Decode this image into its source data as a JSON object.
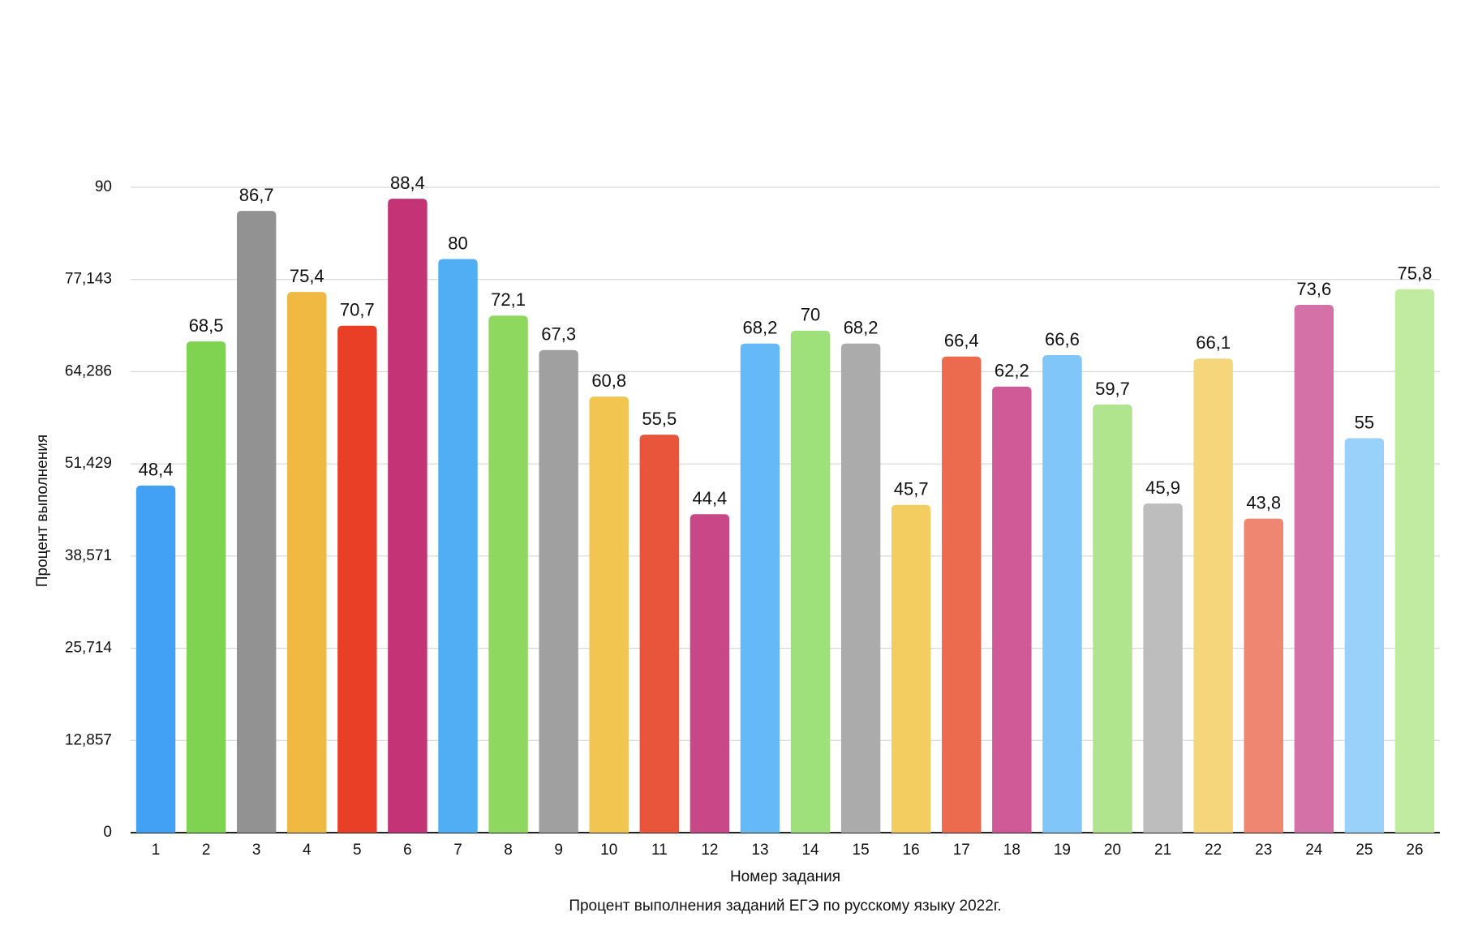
{
  "chart_data": {
    "type": "bar",
    "title": "Процент выполнения заданий ЕГЭ по русскому языку 2022г.",
    "x_label": "Номер задания",
    "y_label": "Процент выполнения",
    "categories": [
      "1",
      "2",
      "3",
      "4",
      "5",
      "6",
      "7",
      "8",
      "9",
      "10",
      "11",
      "12",
      "13",
      "14",
      "15",
      "16",
      "17",
      "18",
      "19",
      "20",
      "21",
      "22",
      "23",
      "24",
      "25",
      "26"
    ],
    "values": [
      48.4,
      68.5,
      86.7,
      75.4,
      70.7,
      88.4,
      80,
      72.1,
      67.3,
      60.8,
      55.5,
      44.4,
      68.2,
      70,
      68.2,
      45.7,
      66.4,
      62.2,
      66.6,
      59.7,
      45.9,
      66.1,
      43.8,
      73.6,
      55,
      75.8
    ],
    "value_labels": [
      "48,4",
      "68,5",
      "86,7",
      "75,4",
      "70,7",
      "88,4",
      "80",
      "72,1",
      "67,3",
      "60,8",
      "55,5",
      "44,4",
      "68,2",
      "70",
      "68,2",
      "45,7",
      "66,4",
      "62,2",
      "66,6",
      "59,7",
      "45,9",
      "66,1",
      "43,8",
      "73,6",
      "55",
      "75,8"
    ],
    "colors": [
      "#42a0f5",
      "#7ed350",
      "#929292",
      "#f0b941",
      "#e93f26",
      "#c33376",
      "#50aef5",
      "#8fd860",
      "#a0a0a0",
      "#f2c450",
      "#e8553a",
      "#c84887",
      "#66b9f7",
      "#9ee07a",
      "#ababab",
      "#f3cd60",
      "#ec6a4e",
      "#d05a97",
      "#80c6f8",
      "#b0e58e",
      "#bdbdbd",
      "#f5d67a",
      "#ef8672",
      "#d472a8",
      "#98d2fa",
      "#c1eba0"
    ],
    "ylim": [
      0,
      90
    ],
    "yticks": [
      0,
      {
        "value": 12.857,
        "label": "12,857"
      },
      {
        "value": 25.714,
        "label": "25,714"
      },
      {
        "value": 38.571,
        "label": "38,571"
      },
      {
        "value": 51.429,
        "label": "51,429"
      },
      {
        "value": 64.286,
        "label": "64,286"
      },
      {
        "value": 77.143,
        "label": "77,143"
      },
      90
    ],
    "grid": true
  }
}
